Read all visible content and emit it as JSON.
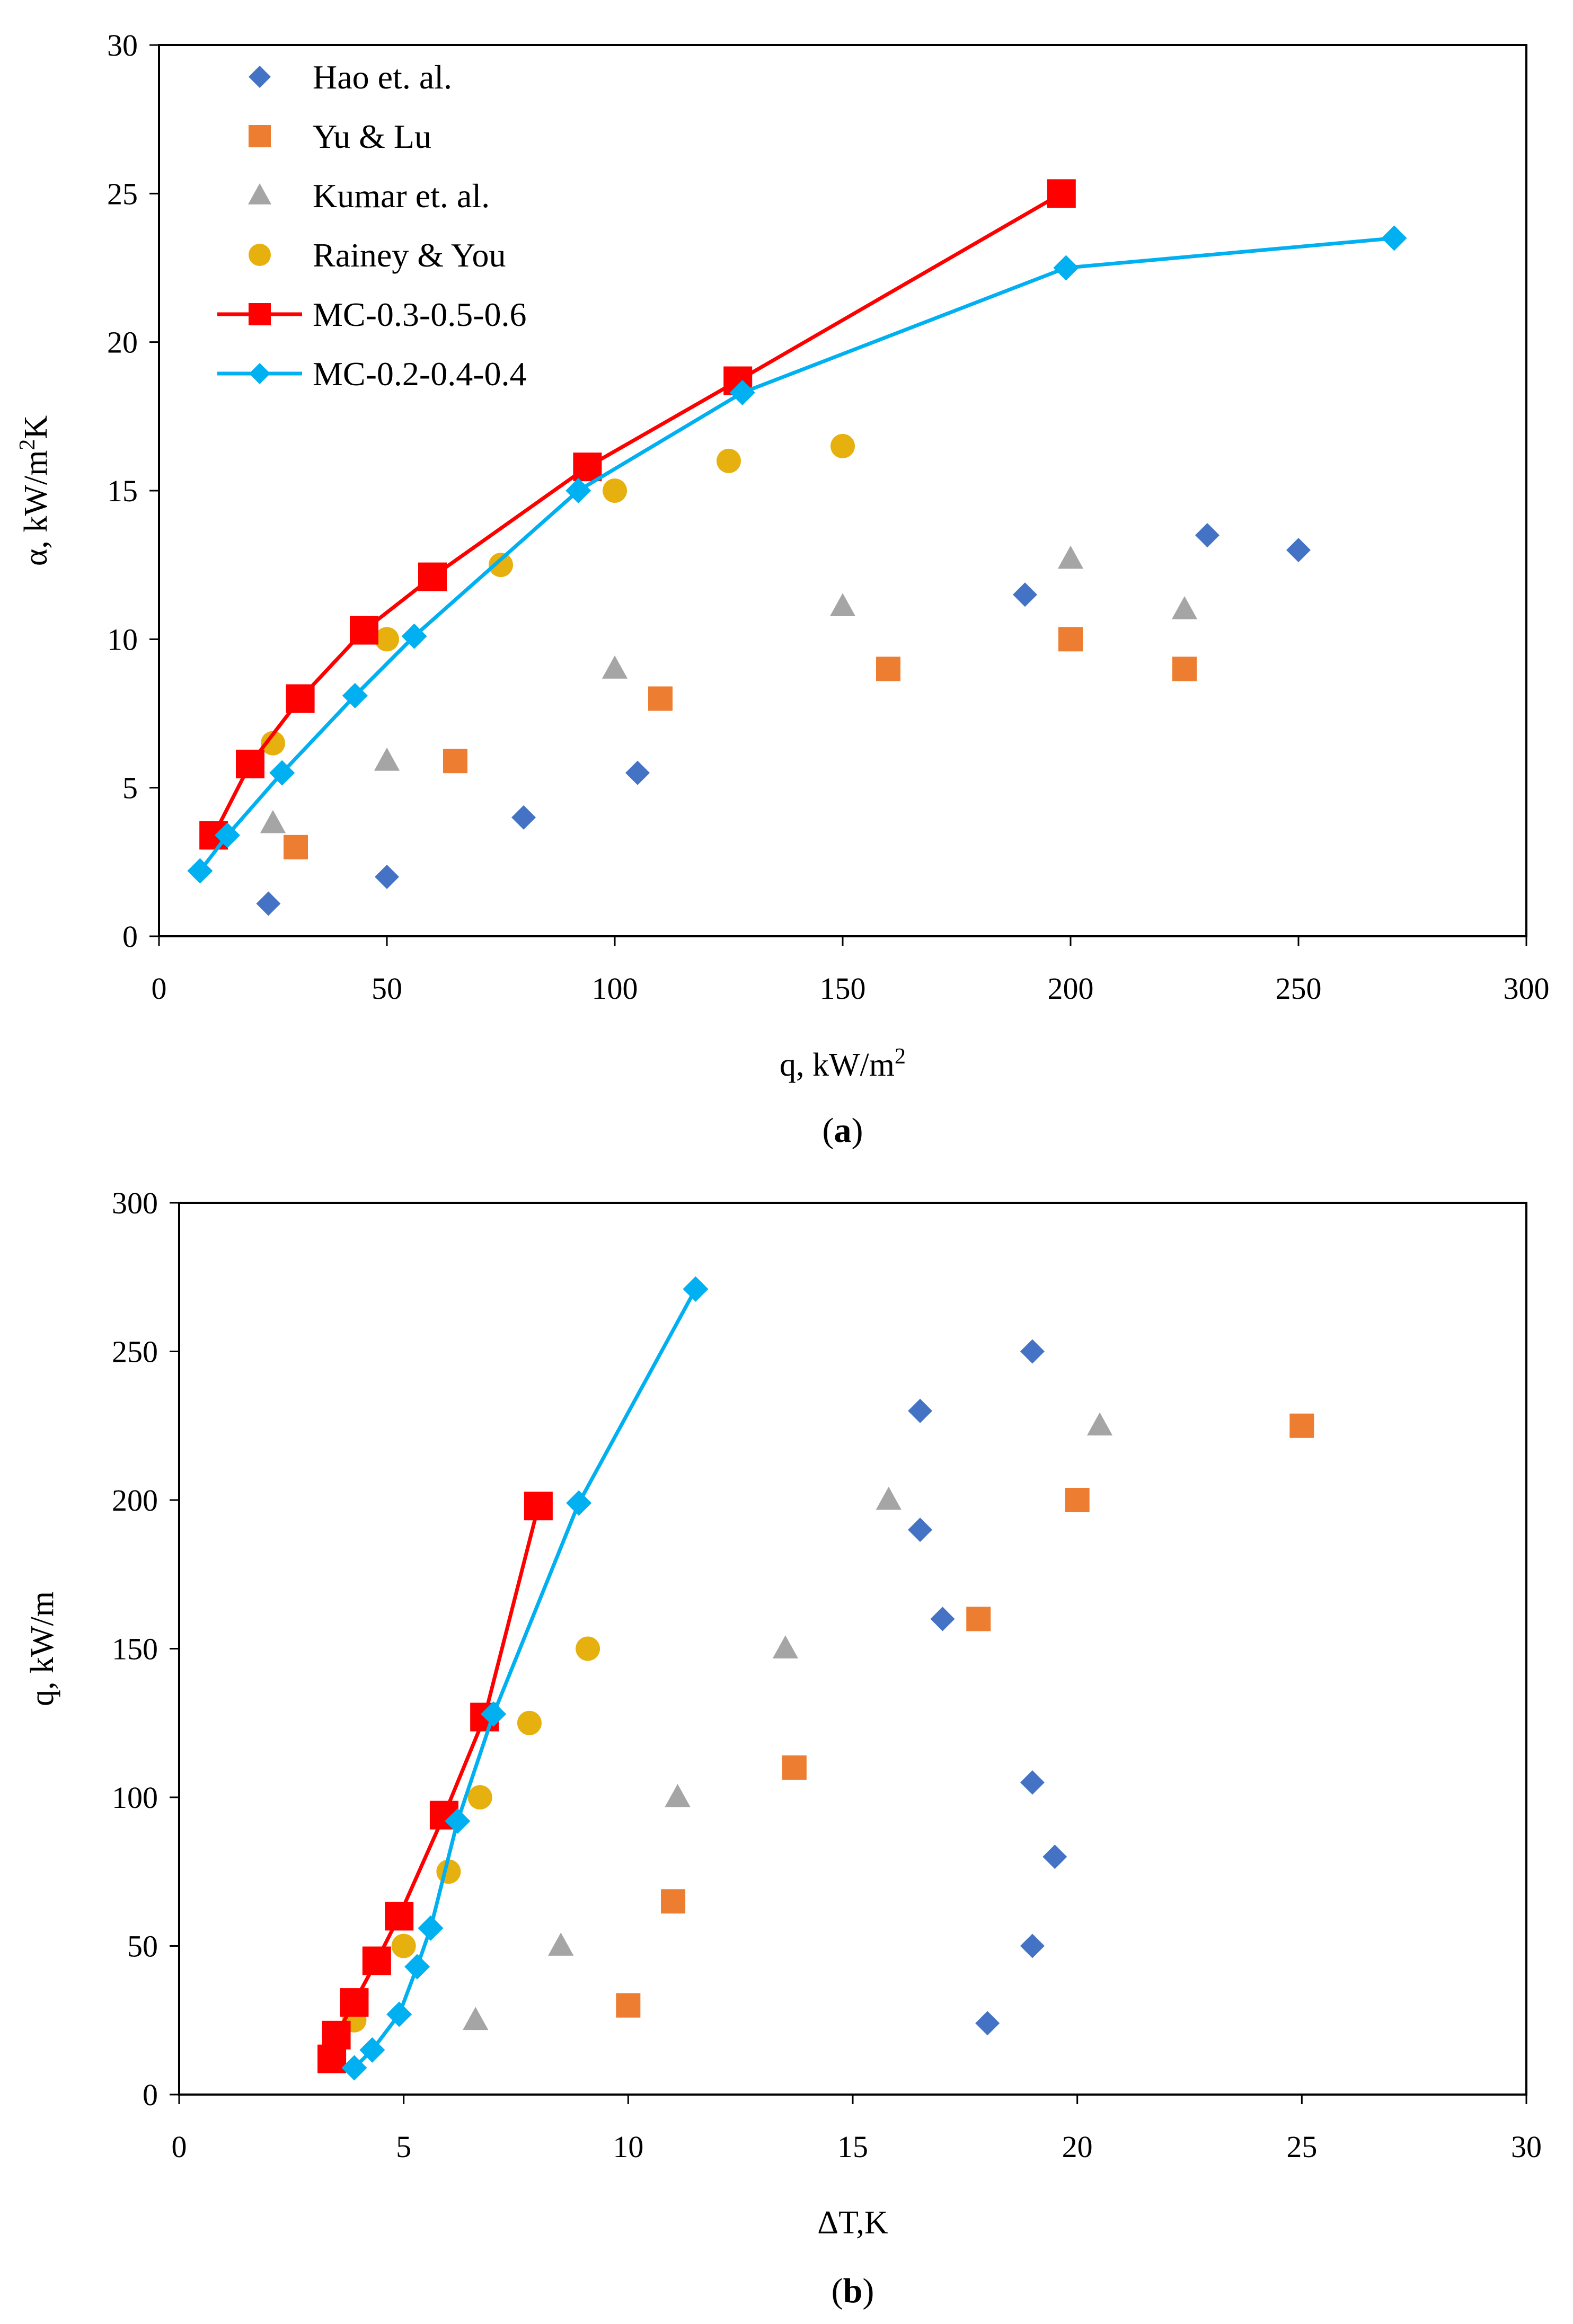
{
  "chart_data": [
    {
      "id": "a",
      "type": "scatter",
      "caption": {
        "open": "(",
        "letter": "a",
        "close": ")"
      },
      "xlabel": {
        "main": "q, kW/m",
        "sup": "2"
      },
      "ylabel": {
        "main": "α, kW/m",
        "sup": "2",
        "tail": "K"
      },
      "xlim": [
        0,
        300
      ],
      "ylim": [
        0,
        30
      ],
      "xticks": [
        0,
        50,
        100,
        150,
        200,
        250,
        300
      ],
      "yticks": [
        0,
        5,
        10,
        15,
        20,
        25,
        30
      ],
      "grid": false,
      "legend_position": "top-left",
      "series": [
        {
          "name": "Hao et. al.",
          "marker": "diamond",
          "line": false,
          "color": "#4472C4",
          "points": [
            [
              24,
              1.1
            ],
            [
              50,
              2.0
            ],
            [
              80,
              4.0
            ],
            [
              105,
              5.5
            ],
            [
              190,
              11.5
            ],
            [
              230,
              13.5
            ],
            [
              250,
              13.0
            ]
          ]
        },
        {
          "name": "Yu & Lu",
          "marker": "square",
          "line": false,
          "color": "#ED7D31",
          "points": [
            [
              30,
              3.0
            ],
            [
              65,
              5.9
            ],
            [
              110,
              8.0
            ],
            [
              160,
              9.0
            ],
            [
              200,
              10.0
            ],
            [
              225,
              9.0
            ]
          ]
        },
        {
          "name": "Kumar et. al.",
          "marker": "triangle",
          "line": false,
          "color": "#A5A5A5",
          "points": [
            [
              25,
              3.8
            ],
            [
              50,
              5.9
            ],
            [
              100,
              9.0
            ],
            [
              150,
              11.1
            ],
            [
              200,
              12.7
            ],
            [
              225,
              11.0
            ]
          ]
        },
        {
          "name": "Rainey & You",
          "marker": "circle",
          "line": false,
          "color": "#E6B00E",
          "points": [
            [
              25,
              6.5
            ],
            [
              50,
              10.0
            ],
            [
              75,
              12.5
            ],
            [
              100,
              15.0
            ],
            [
              125,
              16.0
            ],
            [
              150,
              16.5
            ]
          ]
        },
        {
          "name": "MC-0.3-0.5-0.6",
          "marker": "square",
          "line": true,
          "color": "#FF0000",
          "points": [
            [
              12,
              3.4
            ],
            [
              20,
              5.8
            ],
            [
              31,
              8.0
            ],
            [
              45,
              10.3
            ],
            [
              60,
              12.1
            ],
            [
              94,
              15.8
            ],
            [
              127,
              18.7
            ],
            [
              198,
              25.0
            ]
          ]
        },
        {
          "name": "MC-0.2-0.4-0.4",
          "marker": "diamond",
          "line": true,
          "color": "#00B0F0",
          "points": [
            [
              9,
              2.2
            ],
            [
              15,
              3.4
            ],
            [
              27,
              5.5
            ],
            [
              43,
              8.1
            ],
            [
              56,
              10.1
            ],
            [
              92,
              15.0
            ],
            [
              128,
              18.3
            ],
            [
              199,
              22.5
            ],
            [
              271,
              23.5
            ]
          ]
        }
      ]
    },
    {
      "id": "b",
      "type": "scatter",
      "caption": {
        "open": "(",
        "letter": "b",
        "close": ")"
      },
      "xlabel": {
        "main": "ΔT,K",
        "sup": ""
      },
      "ylabel": {
        "main": "q, kW/m",
        "sup": "",
        "tail": ""
      },
      "xlim": [
        0,
        30
      ],
      "ylim": [
        0,
        300
      ],
      "xticks": [
        0,
        5,
        10,
        15,
        20,
        25,
        30
      ],
      "yticks": [
        0,
        50,
        100,
        150,
        200,
        250,
        300
      ],
      "grid": false,
      "series": [
        {
          "name": "Hao et. al.",
          "marker": "diamond",
          "line": false,
          "color": "#4472C4",
          "points": [
            [
              18.0,
              24
            ],
            [
              19.0,
              50
            ],
            [
              19.5,
              80
            ],
            [
              19.0,
              105
            ],
            [
              17.0,
              160
            ],
            [
              16.5,
              190
            ],
            [
              16.5,
              230
            ],
            [
              19.0,
              250
            ]
          ]
        },
        {
          "name": "Yu & Lu",
          "marker": "square",
          "line": false,
          "color": "#ED7D31",
          "points": [
            [
              10.0,
              30
            ],
            [
              11.0,
              65
            ],
            [
              13.7,
              110
            ],
            [
              17.8,
              160
            ],
            [
              20.0,
              200
            ],
            [
              25.0,
              225
            ]
          ]
        },
        {
          "name": "Kumar et. al.",
          "marker": "triangle",
          "line": false,
          "color": "#A5A5A5",
          "points": [
            [
              6.6,
              25
            ],
            [
              8.5,
              50
            ],
            [
              11.1,
              100
            ],
            [
              13.5,
              150
            ],
            [
              15.8,
              200
            ],
            [
              20.5,
              225
            ]
          ]
        },
        {
          "name": "Rainey & You",
          "marker": "circle",
          "line": false,
          "color": "#E6B00E",
          "points": [
            [
              3.9,
              25
            ],
            [
              5.0,
              50
            ],
            [
              6.0,
              75
            ],
            [
              6.7,
              100
            ],
            [
              7.8,
              125
            ],
            [
              9.1,
              150
            ]
          ]
        },
        {
          "name": "MC-0.3-0.5-0.6",
          "marker": "square",
          "line": true,
          "color": "#FF0000",
          "points": [
            [
              3.4,
              12
            ],
            [
              3.5,
              20
            ],
            [
              3.9,
              31
            ],
            [
              4.4,
              45
            ],
            [
              4.9,
              60
            ],
            [
              5.9,
              94
            ],
            [
              6.8,
              127
            ],
            [
              8.0,
              198
            ]
          ]
        },
        {
          "name": "MC-0.2-0.4-0.4",
          "marker": "diamond",
          "line": true,
          "color": "#00B0F0",
          "points": [
            [
              3.9,
              9
            ],
            [
              4.3,
              15
            ],
            [
              4.9,
              27
            ],
            [
              5.3,
              43
            ],
            [
              5.6,
              56
            ],
            [
              6.2,
              92
            ],
            [
              7.0,
              128
            ],
            [
              8.9,
              199
            ],
            [
              11.5,
              271
            ]
          ]
        }
      ]
    }
  ]
}
